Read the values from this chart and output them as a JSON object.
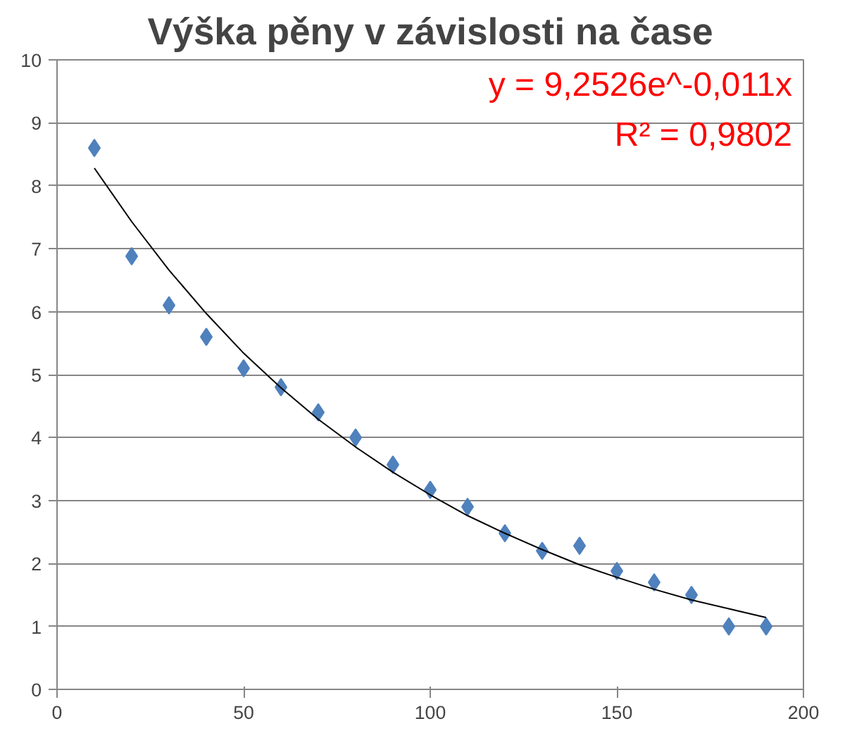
{
  "chart_data": {
    "type": "scatter",
    "title": "Výška pěny v závislosti na čase",
    "x": [
      10,
      20,
      30,
      40,
      50,
      60,
      70,
      80,
      90,
      100,
      110,
      120,
      130,
      140,
      150,
      160,
      170,
      180,
      190
    ],
    "series": [
      {
        "color": "#4f81bd",
        "marker": "diamond",
        "values": [
          8.6,
          6.88,
          6.1,
          5.6,
          5.1,
          4.8,
          4.4,
          4.0,
          3.57,
          3.17,
          2.9,
          2.48,
          2.2,
          2.28,
          1.88,
          1.7,
          1.5,
          1.0,
          1.0
        ]
      },
      {
        "type": "line",
        "color": "#000000",
        "marker": "none",
        "x": [
          10,
          20,
          30,
          40,
          50,
          60,
          70,
          80,
          90,
          100,
          110,
          120,
          130,
          140,
          150,
          160,
          170,
          180,
          190
        ],
        "values": [
          8.28,
          7.43,
          6.66,
          5.97,
          5.34,
          4.79,
          4.29,
          3.85,
          3.45,
          3.09,
          2.76,
          2.48,
          2.22,
          1.98,
          1.78,
          1.59,
          1.42,
          1.28,
          1.14
        ]
      }
    ],
    "xlim": [
      0,
      200
    ],
    "xticks": [
      0,
      50,
      100,
      150,
      200
    ],
    "ylim": [
      0,
      10
    ],
    "yticks": [
      0,
      1,
      2,
      3,
      4,
      5,
      6,
      7,
      8,
      9,
      10
    ],
    "grid": "y",
    "annotations": [
      "y = 9,2526e^-0,011x",
      "R² = 0,9802"
    ]
  }
}
